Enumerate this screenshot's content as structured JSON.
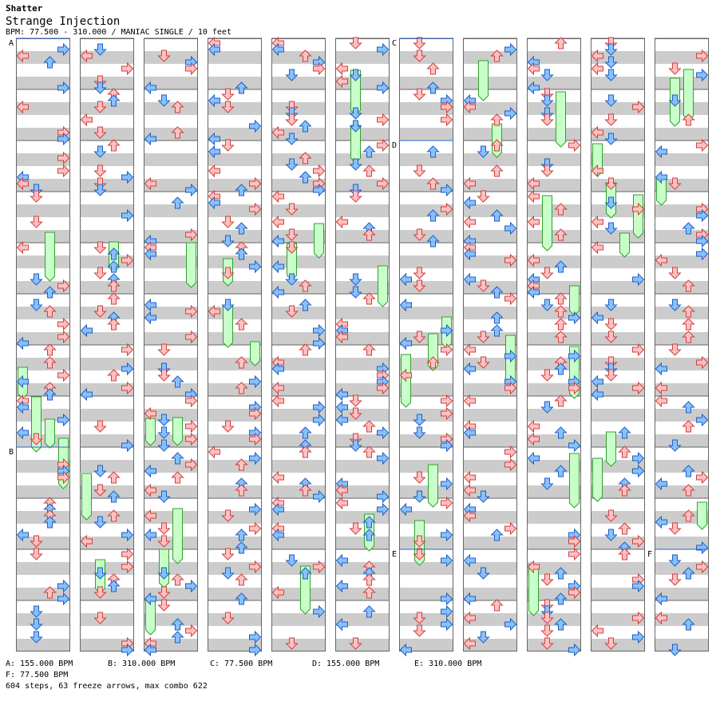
{
  "header": {
    "artist": "Shatter",
    "song_title": "Strange Injection",
    "info": "BPM: 77.500 - 310.000 / MANIAC SINGLE / 10 feet"
  },
  "chart_data": {
    "type": "step-chart",
    "mode": "SINGLE",
    "difficulty": "MANIAC",
    "feet": 10,
    "bpm_range": [
      77.5,
      310.0
    ],
    "measures_per_column": 12,
    "total_columns": 11,
    "section_markers": [
      {
        "label": "A",
        "column": 0,
        "measure": 0,
        "bpm": 155.0
      },
      {
        "label": "B",
        "column": 0,
        "measure": 8,
        "bpm": 310.0
      },
      {
        "label": "C",
        "column": 6,
        "measure": 0,
        "bpm": 77.5
      },
      {
        "label": "D",
        "column": 6,
        "measure": 2,
        "bpm": 155.0
      },
      {
        "label": "E",
        "column": 6,
        "measure": 10,
        "bpm": 310.0
      },
      {
        "label": "F",
        "column": 10,
        "measure": 10,
        "bpm": 77.5
      }
    ],
    "steps": 604,
    "freeze_arrows": 63,
    "max_combo": 622
  },
  "legend": {
    "row1": [
      "A: 155.000 BPM",
      "B: 310.000 BPM",
      "C: 77.500 BPM",
      "D: 155.000 BPM",
      "E: 310.000 BPM"
    ],
    "row2": [
      "F: 77.500 BPM"
    ]
  },
  "summary": "604 steps, 63 freeze arrows, max combo 622",
  "colors": {
    "stripe": "#cccccc",
    "border": "#666666",
    "red_fill": "#ffc0c0",
    "red_stroke": "#d04040",
    "blue_fill": "#88c0ff",
    "blue_stroke": "#2060c0",
    "freeze_fill": "#c8ffc8",
    "freeze_stroke": "#30a030",
    "marker_line": "#2a6ad0"
  }
}
